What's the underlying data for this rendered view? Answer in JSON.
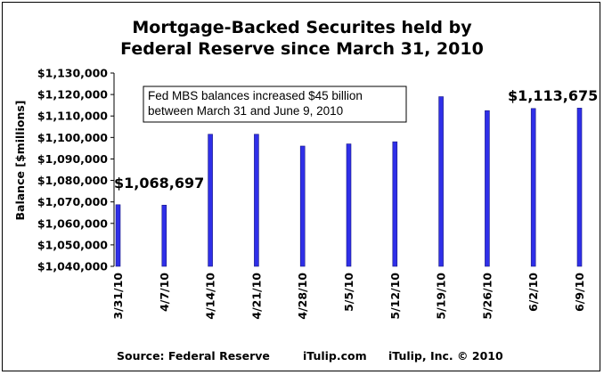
{
  "chart_data": {
    "type": "bar",
    "title": [
      "Mortgage-Backed Securites held by",
      "Federal Reserve since March 31, 2010"
    ],
    "ylabel": "Balance [$millions]",
    "xlabel": "",
    "ylim": [
      1040000,
      1130000
    ],
    "yticks": [
      1040000,
      1050000,
      1060000,
      1070000,
      1080000,
      1090000,
      1100000,
      1110000,
      1120000,
      1130000
    ],
    "ytick_labels": [
      "$1,040,000",
      "$1,050,000",
      "$1,060,000",
      "$1,070,000",
      "$1,080,000",
      "$1,090,000",
      "$1,100,000",
      "$1,110,000",
      "$1,120,000",
      "$1,130,000"
    ],
    "categories": [
      "3/31/10",
      "4/7/10",
      "4/14/10",
      "4/21/10",
      "4/28/10",
      "5/5/10",
      "5/12/10",
      "5/19/10",
      "5/26/10",
      "6/2/10",
      "6/9/10"
    ],
    "values": [
      1068697,
      1068500,
      1101500,
      1101500,
      1096000,
      1097000,
      1098000,
      1119000,
      1112500,
      1113500,
      1113675
    ],
    "grid": false,
    "bar_color": "#2f2fe8",
    "annotations": {
      "first_value": "$1,068,697",
      "last_value": "$1,113,675",
      "note_lines": [
        "Fed MBS balances increased $45 billion",
        "between March 31 and June 9, 2010"
      ]
    },
    "footer": {
      "source": "Source: Federal Reserve",
      "site": "iTulip.com",
      "copyright": "iTulip, Inc. © 2010"
    }
  }
}
